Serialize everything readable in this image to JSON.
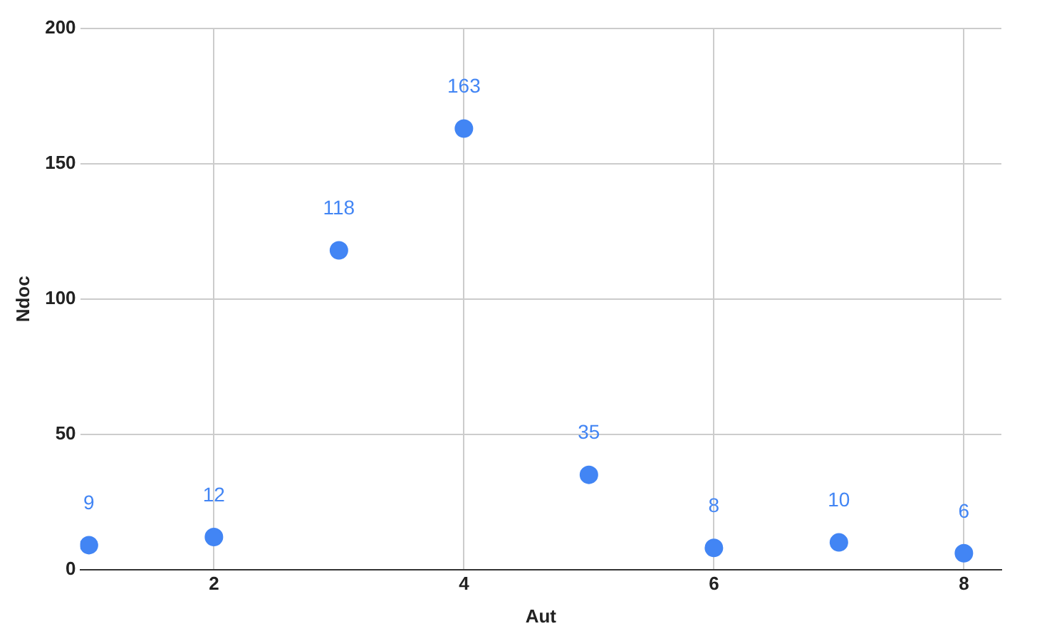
{
  "chart_data": {
    "type": "scatter",
    "xlabel": "Aut",
    "ylabel": "Ndoc",
    "x": [
      1,
      2,
      3,
      4,
      5,
      6,
      7,
      8
    ],
    "values": [
      9,
      12,
      118,
      163,
      35,
      8,
      10,
      6
    ],
    "color": "#4285f4",
    "marker": "circle",
    "data_labels": true,
    "grid": true,
    "xlim": [
      0.93,
      8.3
    ],
    "xticks": [
      2,
      4,
      6,
      8
    ],
    "ylim": [
      0,
      200
    ],
    "yticks": [
      0,
      50,
      100,
      150,
      200
    ]
  }
}
